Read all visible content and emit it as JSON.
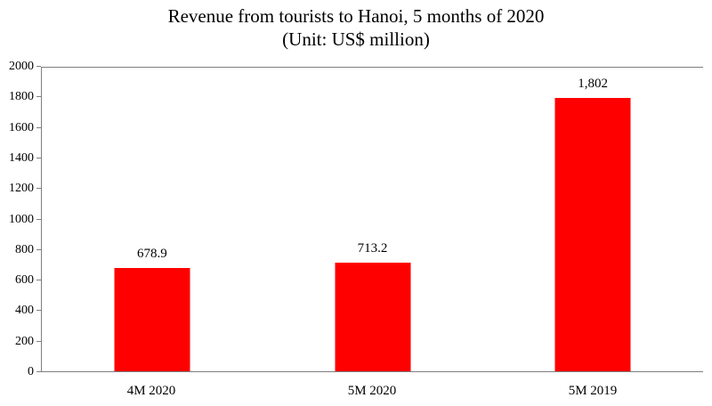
{
  "chart_data": {
    "type": "bar",
    "title": "Revenue from tourists to Hanoi, 5 months of 2020",
    "subtitle": "(Unit: US$ million)",
    "categories": [
      "4M 2020",
      "5M 2020",
      "5M 2019"
    ],
    "values": [
      678.9,
      713.2,
      1802
    ],
    "value_labels": [
      "678.9",
      "713.2",
      "1,802"
    ],
    "series_name": "Revenue",
    "xlabel": "",
    "ylabel": "",
    "ylim": [
      0,
      2000
    ],
    "ytick_step": 200,
    "ytick_labels": [
      "0",
      "200",
      "400",
      "600",
      "800",
      "1000",
      "1200",
      "1400",
      "1600",
      "1800",
      "2000"
    ],
    "bar_color": "#ff0000",
    "axis_color": "#7f7f7f",
    "grid": "off",
    "legend": "none"
  }
}
